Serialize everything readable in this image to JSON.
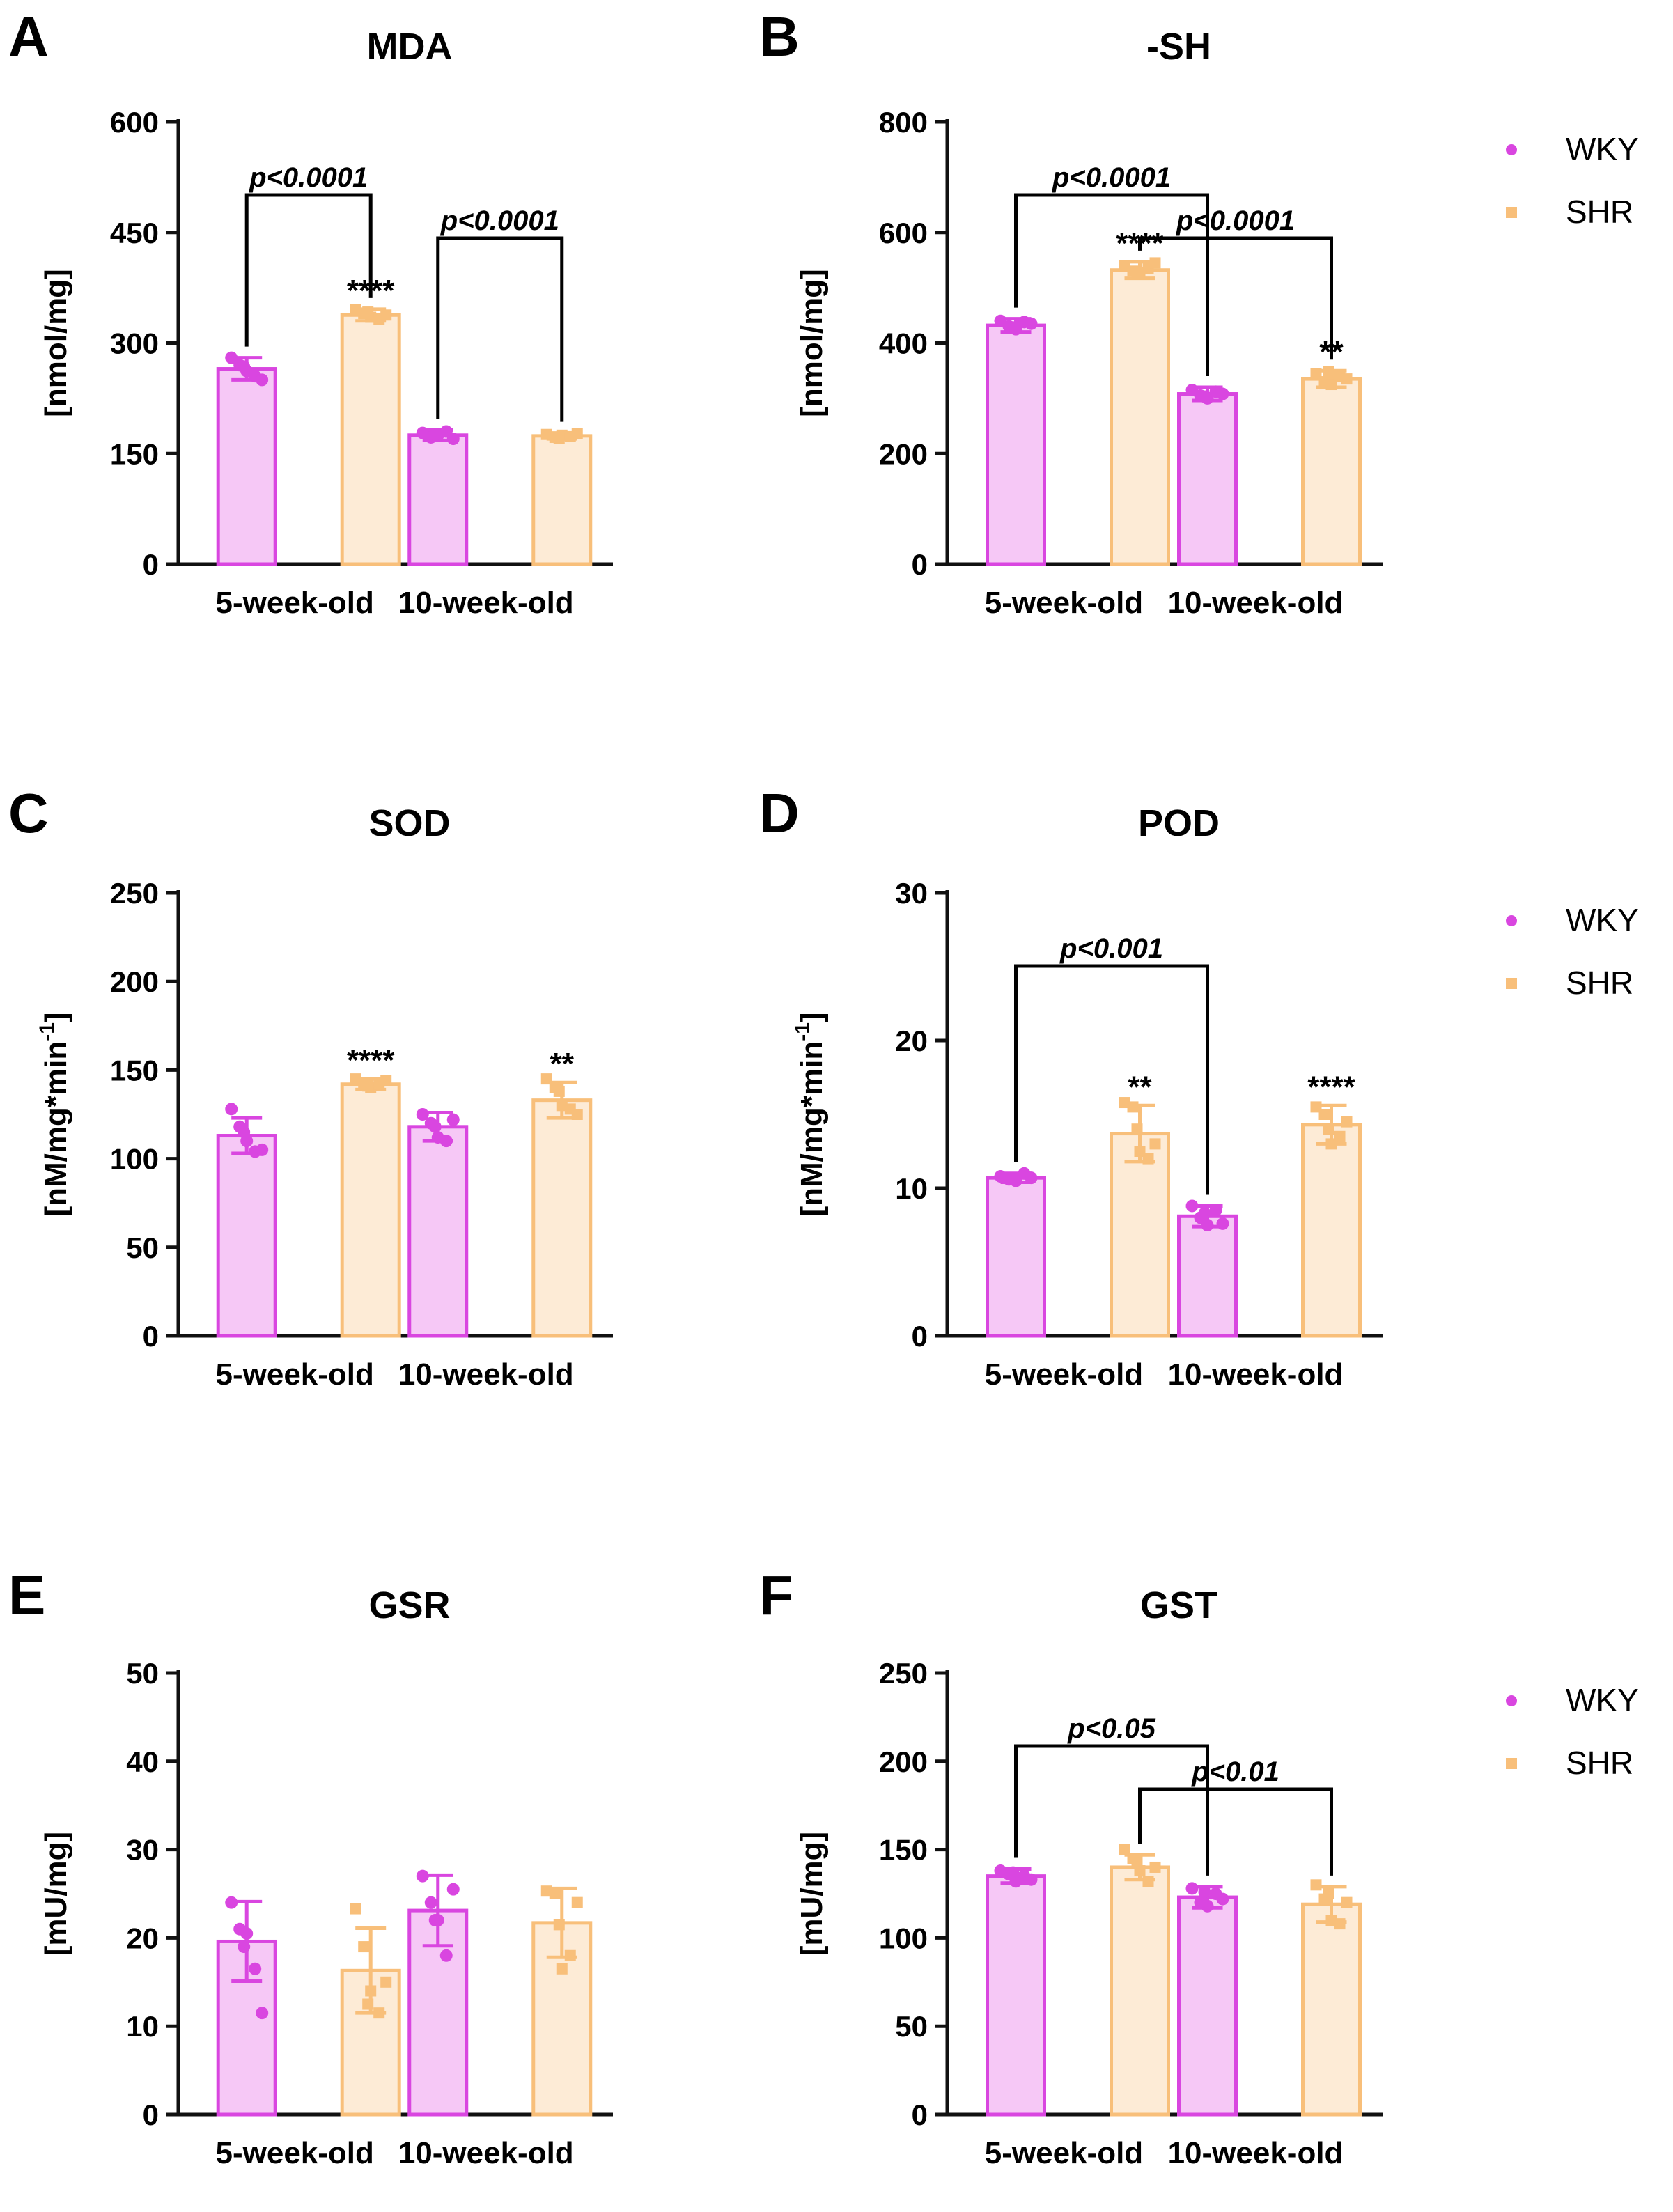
{
  "figure": {
    "colors": {
      "wky": "#d946e0",
      "wky_fill": "#f6c8f6",
      "shr": "#f8bf7a",
      "shr_fill": "#fdebd6",
      "axis": "#111111"
    }
  },
  "legend": {
    "entries": [
      "WKY",
      "SHR"
    ]
  },
  "chart_data": [
    {
      "panel": "A",
      "title": "MDA",
      "type": "bar",
      "ylabel": "[nmol/mg]",
      "categories": [
        "5-week-old",
        "10-week-old"
      ],
      "ylim": [
        0,
        600
      ],
      "yticks": [
        0,
        150,
        300,
        450,
        600
      ],
      "series": [
        {
          "name": "WKY",
          "values": [
            265,
            175
          ],
          "errors": [
            15,
            7
          ],
          "points": [
            [
              280,
              270,
              262,
              255,
              250,
              268
            ],
            [
              178,
              172,
              175,
              180,
              170,
              176
            ]
          ]
        },
        {
          "name": "SHR",
          "values": [
            338,
            174
          ],
          "errors": [
            8,
            4
          ],
          "points": [
            [
              345,
              340,
              335,
              332,
              338,
              342
            ],
            [
              176,
              172,
              175,
              173,
              177,
              171
            ]
          ]
        }
      ],
      "stars": [
        {
          "text": "****",
          "series": 1,
          "cat": 0
        }
      ],
      "brackets": [
        {
          "text": "p<0.0001",
          "from": [
            0,
            0
          ],
          "to": [
            1,
            0
          ],
          "level": 0
        },
        {
          "text": "p<0.0001",
          "from": [
            0,
            1
          ],
          "to": [
            1,
            1
          ],
          "level": 1
        }
      ],
      "show_legend": false
    },
    {
      "panel": "B",
      "title": "-SH",
      "type": "bar",
      "ylabel": "[nmol/mg]",
      "categories": [
        "5-week-old",
        "10-week-old"
      ],
      "ylim": [
        0,
        800
      ],
      "yticks": [
        0,
        200,
        400,
        600,
        800
      ],
      "series": [
        {
          "name": "WKY",
          "values": [
            432,
            308
          ],
          "errors": [
            12,
            12
          ],
          "points": [
            [
              440,
              430,
              425,
              438,
              435,
              428
            ],
            [
              315,
              305,
              300,
              312,
              308,
              303
            ]
          ]
        },
        {
          "name": "SHR",
          "values": [
            532,
            335
          ],
          "errors": [
            15,
            15
          ],
          "points": [
            [
              540,
              530,
              525,
              535,
              545,
              528
            ],
            [
              345,
              330,
              325,
              340,
              335,
              348
            ]
          ]
        }
      ],
      "stars": [
        {
          "text": "****",
          "series": 1,
          "cat": 0
        },
        {
          "text": "**",
          "series": 1,
          "cat": 1
        }
      ],
      "brackets": [
        {
          "text": "p<0.0001",
          "from": [
            0,
            0
          ],
          "to": [
            0,
            1
          ],
          "level": 0
        },
        {
          "text": "p<0.0001",
          "from": [
            1,
            0
          ],
          "to": [
            1,
            1
          ],
          "level": 1
        }
      ],
      "show_legend": true
    },
    {
      "panel": "C",
      "title": "SOD",
      "type": "bar",
      "ylabel": "[nM/mg*min",
      "ylabel_sup": "-1",
      "ylabel_end": "]",
      "categories": [
        "5-week-old",
        "10-week-old"
      ],
      "ylim": [
        0,
        250
      ],
      "yticks": [
        0,
        50,
        100,
        150,
        200,
        250
      ],
      "series": [
        {
          "name": "WKY",
          "values": [
            113,
            118
          ],
          "errors": [
            10,
            8
          ],
          "points": [
            [
              128,
              118,
              110,
              104,
              105,
              115
            ],
            [
              125,
              120,
              112,
              110,
              122,
              118
            ]
          ]
        },
        {
          "name": "SHR",
          "values": [
            142,
            133
          ],
          "errors": [
            3,
            10
          ],
          "points": [
            [
              145,
              143,
              140,
              142,
              144,
              141
            ],
            [
              145,
              140,
              130,
              128,
              125,
              138
            ]
          ]
        }
      ],
      "stars": [
        {
          "text": "****",
          "series": 1,
          "cat": 0
        },
        {
          "text": "**",
          "series": 1,
          "cat": 1
        }
      ],
      "brackets": [],
      "show_legend": false
    },
    {
      "panel": "D",
      "title": "POD",
      "type": "bar",
      "ylabel": "[nM/mg*min",
      "ylabel_sup": "-1",
      "ylabel_end": "]",
      "categories": [
        "5-week-old",
        "10-week-old"
      ],
      "ylim": [
        0,
        30
      ],
      "yticks": [
        0,
        10,
        20,
        30
      ],
      "series": [
        {
          "name": "WKY",
          "values": [
            10.7,
            8.1
          ],
          "errors": [
            0.3,
            0.7
          ],
          "points": [
            [
              10.8,
              10.6,
              10.5,
              11.0,
              10.7,
              10.6
            ],
            [
              8.8,
              8.0,
              7.5,
              8.5,
              7.6,
              8.3
            ]
          ]
        },
        {
          "name": "SHR",
          "values": [
            13.7,
            14.3
          ],
          "errors": [
            1.9,
            1.3
          ],
          "points": [
            [
              15.8,
              15.5,
              12.5,
              12.0,
              13.0,
              14.0
            ],
            [
              15.5,
              15.0,
              13.0,
              13.5,
              14.5,
              14.0
            ]
          ]
        }
      ],
      "stars": [
        {
          "text": "**",
          "series": 1,
          "cat": 0
        },
        {
          "text": "****",
          "series": 1,
          "cat": 1
        }
      ],
      "brackets": [
        {
          "text": "p<0.001",
          "from": [
            0,
            0
          ],
          "to": [
            0,
            1
          ],
          "level": 0
        }
      ],
      "show_legend": true
    },
    {
      "panel": "E",
      "title": "GSR",
      "type": "bar",
      "ylabel": "[mU/mg]",
      "categories": [
        "5-week-old",
        "10-week-old"
      ],
      "ylim": [
        0,
        50
      ],
      "yticks": [
        0,
        10,
        20,
        30,
        40,
        50
      ],
      "series": [
        {
          "name": "WKY",
          "values": [
            19.6,
            23.1
          ],
          "errors": [
            4.5,
            4.0
          ],
          "points": [
            [
              24.0,
              21.0,
              20.5,
              16.5,
              11.5,
              19.0
            ],
            [
              27.0,
              24.0,
              22.0,
              18.0,
              25.5,
              22.0
            ]
          ]
        },
        {
          "name": "SHR",
          "values": [
            16.3,
            21.7
          ],
          "errors": [
            4.8,
            3.9
          ],
          "points": [
            [
              23.3,
              19.0,
              14.0,
              11.5,
              15.0,
              12.5
            ],
            [
              25.3,
              25.0,
              16.5,
              18.0,
              24.0,
              21.5
            ]
          ]
        }
      ],
      "stars": [],
      "brackets": [],
      "show_legend": false
    },
    {
      "panel": "F",
      "title": "GST",
      "type": "bar",
      "ylabel": "[mU/mg]",
      "categories": [
        "5-week-old",
        "10-week-old"
      ],
      "ylim": [
        0,
        250
      ],
      "yticks": [
        0,
        50,
        100,
        150,
        200,
        250
      ],
      "series": [
        {
          "name": "WKY",
          "values": [
            135,
            123
          ],
          "errors": [
            4,
            6
          ],
          "points": [
            [
              138,
              136,
              132,
              135,
              133,
              137
            ],
            [
              128,
              120,
              118,
              125,
              122,
              126
            ]
          ]
        },
        {
          "name": "SHR",
          "values": [
            140,
            119
          ],
          "errors": [
            7,
            10
          ],
          "points": [
            [
              150,
              145,
              138,
              132,
              140,
              143
            ],
            [
              130,
              122,
              110,
              108,
              120,
              125
            ]
          ]
        }
      ],
      "stars": [],
      "brackets": [
        {
          "text": "p<0.05",
          "from": [
            0,
            0
          ],
          "to": [
            0,
            1
          ],
          "level": 0
        },
        {
          "text": "p<0.01",
          "from": [
            1,
            0
          ],
          "to": [
            1,
            1
          ],
          "level": 1
        }
      ],
      "show_legend": true
    }
  ]
}
